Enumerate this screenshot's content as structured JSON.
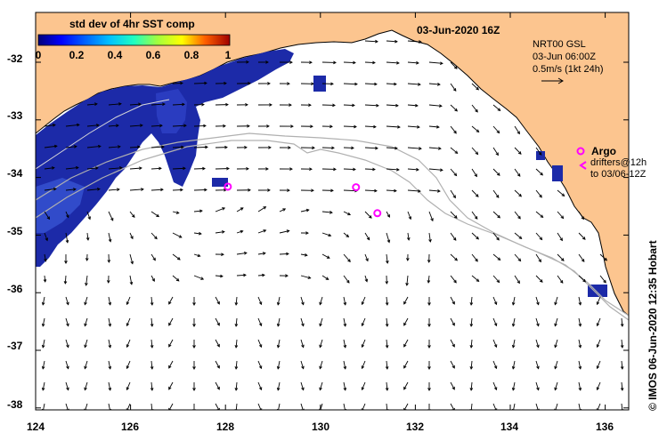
{
  "title": "03-Jun-2020 16Z",
  "colorbar": {
    "label": "std dev of 4hr SST comp",
    "ticks": [
      "0",
      "0.2",
      "0.4",
      "0.6",
      "0.8",
      "1"
    ],
    "colors": [
      "#00007a",
      "#0000ff",
      "#0066ff",
      "#00c0ff",
      "#20ffc0",
      "#a0ff40",
      "#ffff00",
      "#ffa000",
      "#ff3000",
      "#a00000"
    ]
  },
  "vector_legend": {
    "line1": "NRT00 GSL",
    "line2": "03-Jun 06:00Z",
    "line3": "0.5m/s (1kt 24h)"
  },
  "argo": {
    "label": "Argo",
    "line2": "drifters@12h",
    "line3": "to 03/06-12Z"
  },
  "credit": "© IMOS 06-Jun-2020 12:35 Hobart",
  "axes": {
    "x_ticks": [
      "124",
      "126",
      "128",
      "130",
      "132",
      "134",
      "136"
    ],
    "y_ticks": [
      "-32",
      "-33",
      "-34",
      "-35",
      "-36",
      "-37",
      "-38"
    ]
  },
  "argo_floats": [
    {
      "lon": 128.05,
      "lat": -34.16
    },
    {
      "lon": 130.75,
      "lat": -34.17
    },
    {
      "lon": 131.2,
      "lat": -34.62
    }
  ],
  "colors": {
    "land": "#fcc58f",
    "argo": "#ff00ff",
    "arrow": "#000000",
    "contour": "#b0b0b0",
    "sst_high": "#1c2aa8"
  }
}
